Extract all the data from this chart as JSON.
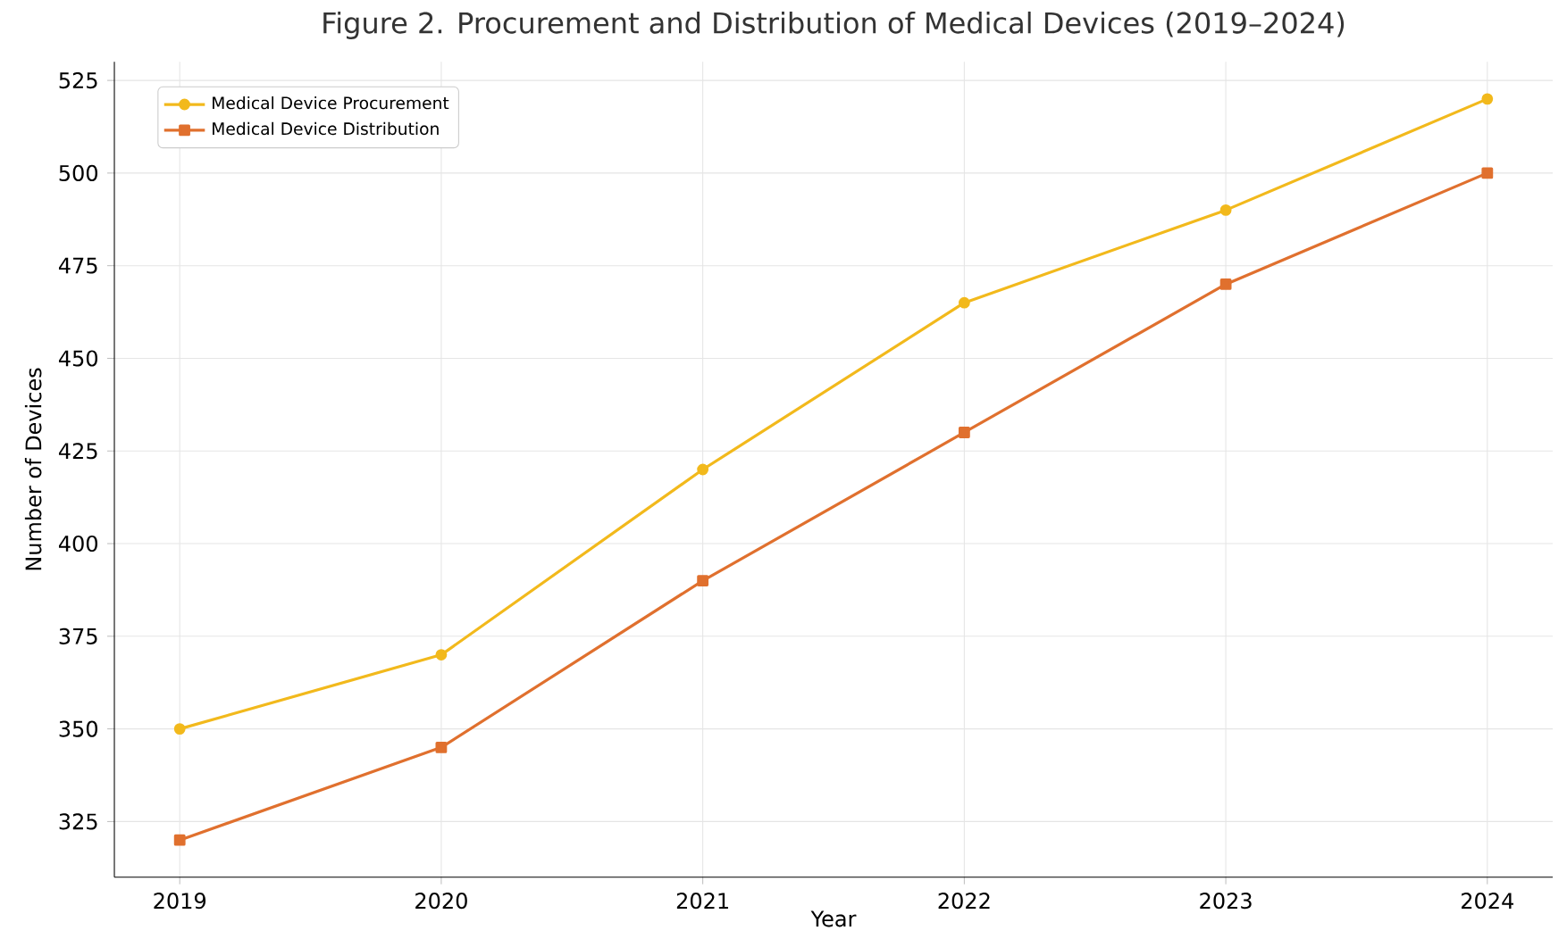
{
  "chart_data": {
    "type": "line",
    "title": "Figure 2. Procurement and Distribution of Medical Devices (2019–2024)",
    "xlabel": "Year",
    "ylabel": "Number of Devices",
    "x": [
      2019,
      2020,
      2021,
      2022,
      2023,
      2024
    ],
    "series": [
      {
        "name": "Medical Device Procurement",
        "color": "#f2b91c",
        "marker": "circle",
        "values": [
          350,
          370,
          420,
          465,
          490,
          520
        ]
      },
      {
        "name": "Medical Device Distribution",
        "color": "#e0702e",
        "marker": "square",
        "values": [
          320,
          345,
          390,
          430,
          470,
          500
        ]
      }
    ],
    "xlim": [
      2018.75,
      2024.25
    ],
    "ylim": [
      310,
      530
    ],
    "xticks": [
      2019,
      2020,
      2021,
      2022,
      2023,
      2024
    ],
    "yticks": [
      325,
      350,
      375,
      400,
      425,
      450,
      475,
      500,
      525
    ],
    "grid": true,
    "legend": "top left",
    "line_style": "solid"
  }
}
